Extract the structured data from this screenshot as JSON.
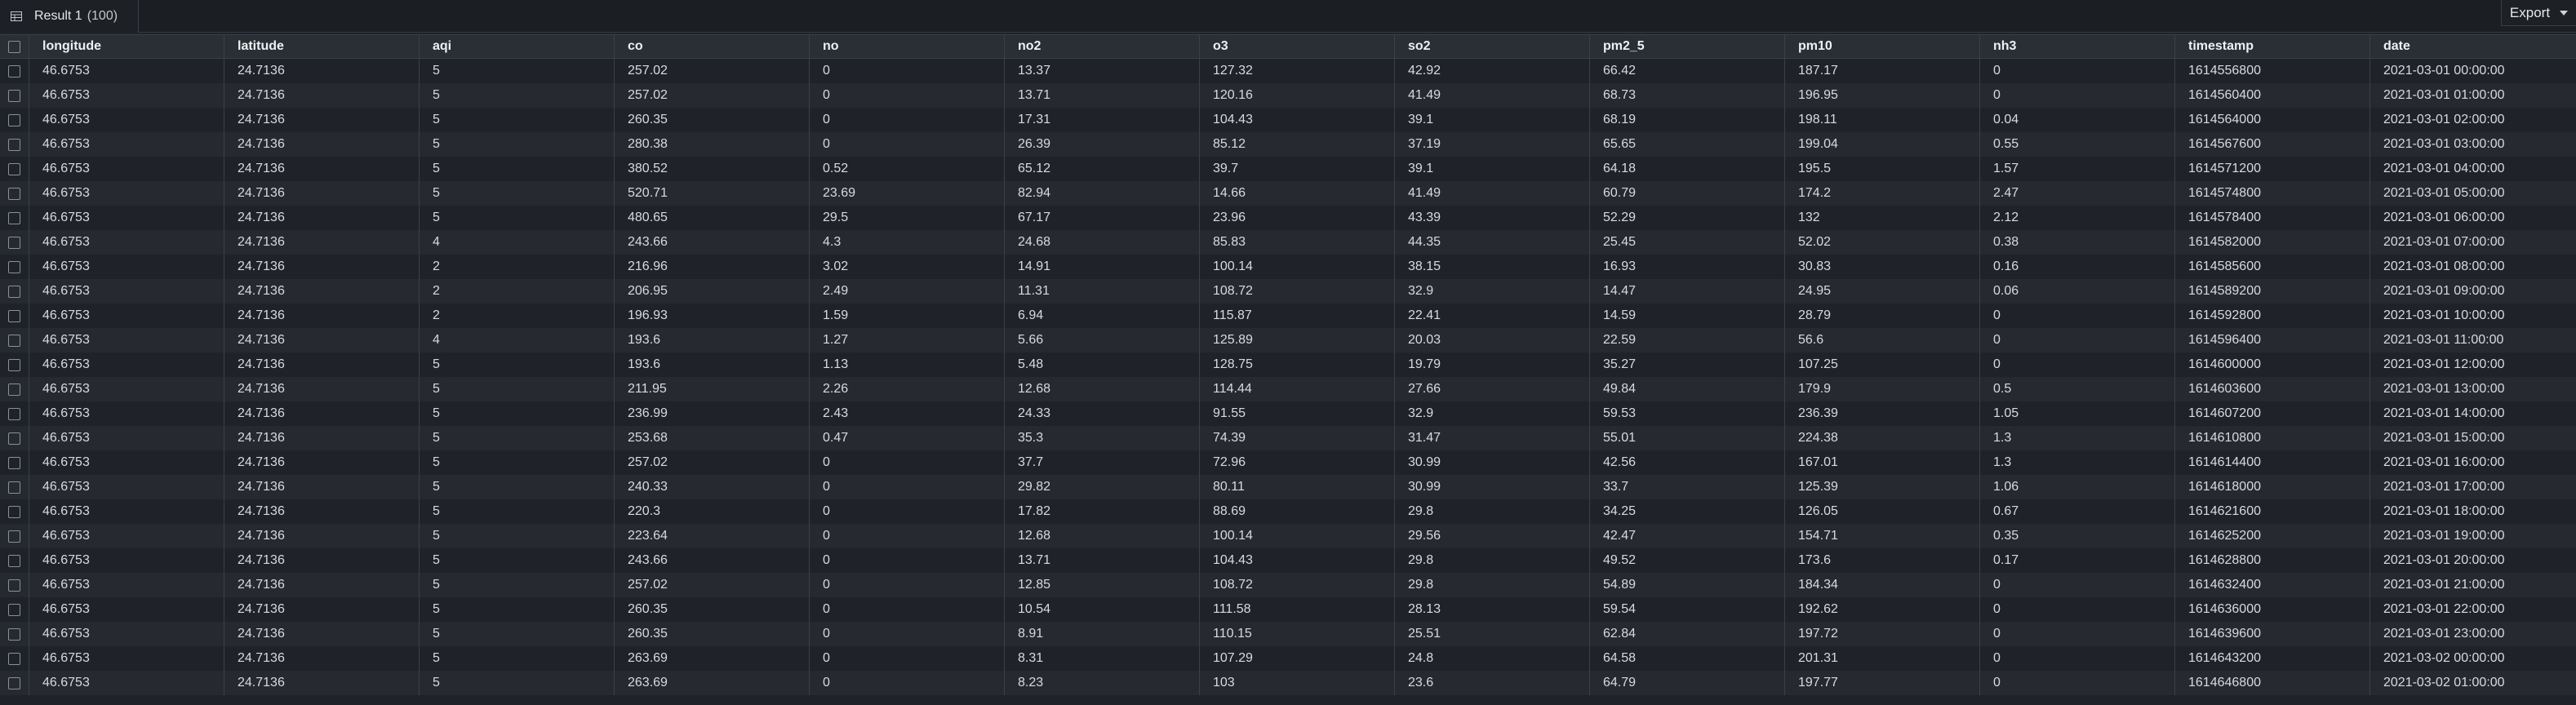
{
  "tab": {
    "label": "Result 1",
    "count": "(100)"
  },
  "toolbar": {
    "export_label": "Export"
  },
  "columns": [
    "longitude",
    "latitude",
    "aqi",
    "co",
    "no",
    "no2",
    "o3",
    "so2",
    "pm2_5",
    "pm10",
    "nh3",
    "timestamp",
    "date"
  ],
  "rows": [
    [
      "46.6753",
      "24.7136",
      "5",
      "257.02",
      "0",
      "13.37",
      "127.32",
      "42.92",
      "66.42",
      "187.17",
      "0",
      "1614556800",
      "2021-03-01 00:00:00"
    ],
    [
      "46.6753",
      "24.7136",
      "5",
      "257.02",
      "0",
      "13.71",
      "120.16",
      "41.49",
      "68.73",
      "196.95",
      "0",
      "1614560400",
      "2021-03-01 01:00:00"
    ],
    [
      "46.6753",
      "24.7136",
      "5",
      "260.35",
      "0",
      "17.31",
      "104.43",
      "39.1",
      "68.19",
      "198.11",
      "0.04",
      "1614564000",
      "2021-03-01 02:00:00"
    ],
    [
      "46.6753",
      "24.7136",
      "5",
      "280.38",
      "0",
      "26.39",
      "85.12",
      "37.19",
      "65.65",
      "199.04",
      "0.55",
      "1614567600",
      "2021-03-01 03:00:00"
    ],
    [
      "46.6753",
      "24.7136",
      "5",
      "380.52",
      "0.52",
      "65.12",
      "39.7",
      "39.1",
      "64.18",
      "195.5",
      "1.57",
      "1614571200",
      "2021-03-01 04:00:00"
    ],
    [
      "46.6753",
      "24.7136",
      "5",
      "520.71",
      "23.69",
      "82.94",
      "14.66",
      "41.49",
      "60.79",
      "174.2",
      "2.47",
      "1614574800",
      "2021-03-01 05:00:00"
    ],
    [
      "46.6753",
      "24.7136",
      "5",
      "480.65",
      "29.5",
      "67.17",
      "23.96",
      "43.39",
      "52.29",
      "132",
      "2.12",
      "1614578400",
      "2021-03-01 06:00:00"
    ],
    [
      "46.6753",
      "24.7136",
      "4",
      "243.66",
      "4.3",
      "24.68",
      "85.83",
      "44.35",
      "25.45",
      "52.02",
      "0.38",
      "1614582000",
      "2021-03-01 07:00:00"
    ],
    [
      "46.6753",
      "24.7136",
      "2",
      "216.96",
      "3.02",
      "14.91",
      "100.14",
      "38.15",
      "16.93",
      "30.83",
      "0.16",
      "1614585600",
      "2021-03-01 08:00:00"
    ],
    [
      "46.6753",
      "24.7136",
      "2",
      "206.95",
      "2.49",
      "11.31",
      "108.72",
      "32.9",
      "14.47",
      "24.95",
      "0.06",
      "1614589200",
      "2021-03-01 09:00:00"
    ],
    [
      "46.6753",
      "24.7136",
      "2",
      "196.93",
      "1.59",
      "6.94",
      "115.87",
      "22.41",
      "14.59",
      "28.79",
      "0",
      "1614592800",
      "2021-03-01 10:00:00"
    ],
    [
      "46.6753",
      "24.7136",
      "4",
      "193.6",
      "1.27",
      "5.66",
      "125.89",
      "20.03",
      "22.59",
      "56.6",
      "0",
      "1614596400",
      "2021-03-01 11:00:00"
    ],
    [
      "46.6753",
      "24.7136",
      "5",
      "193.6",
      "1.13",
      "5.48",
      "128.75",
      "19.79",
      "35.27",
      "107.25",
      "0",
      "1614600000",
      "2021-03-01 12:00:00"
    ],
    [
      "46.6753",
      "24.7136",
      "5",
      "211.95",
      "2.26",
      "12.68",
      "114.44",
      "27.66",
      "49.84",
      "179.9",
      "0.5",
      "1614603600",
      "2021-03-01 13:00:00"
    ],
    [
      "46.6753",
      "24.7136",
      "5",
      "236.99",
      "2.43",
      "24.33",
      "91.55",
      "32.9",
      "59.53",
      "236.39",
      "1.05",
      "1614607200",
      "2021-03-01 14:00:00"
    ],
    [
      "46.6753",
      "24.7136",
      "5",
      "253.68",
      "0.47",
      "35.3",
      "74.39",
      "31.47",
      "55.01",
      "224.38",
      "1.3",
      "1614610800",
      "2021-03-01 15:00:00"
    ],
    [
      "46.6753",
      "24.7136",
      "5",
      "257.02",
      "0",
      "37.7",
      "72.96",
      "30.99",
      "42.56",
      "167.01",
      "1.3",
      "1614614400",
      "2021-03-01 16:00:00"
    ],
    [
      "46.6753",
      "24.7136",
      "5",
      "240.33",
      "0",
      "29.82",
      "80.11",
      "30.99",
      "33.7",
      "125.39",
      "1.06",
      "1614618000",
      "2021-03-01 17:00:00"
    ],
    [
      "46.6753",
      "24.7136",
      "5",
      "220.3",
      "0",
      "17.82",
      "88.69",
      "29.8",
      "34.25",
      "126.05",
      "0.67",
      "1614621600",
      "2021-03-01 18:00:00"
    ],
    [
      "46.6753",
      "24.7136",
      "5",
      "223.64",
      "0",
      "12.68",
      "100.14",
      "29.56",
      "42.47",
      "154.71",
      "0.35",
      "1614625200",
      "2021-03-01 19:00:00"
    ],
    [
      "46.6753",
      "24.7136",
      "5",
      "243.66",
      "0",
      "13.71",
      "104.43",
      "29.8",
      "49.52",
      "173.6",
      "0.17",
      "1614628800",
      "2021-03-01 20:00:00"
    ],
    [
      "46.6753",
      "24.7136",
      "5",
      "257.02",
      "0",
      "12.85",
      "108.72",
      "29.8",
      "54.89",
      "184.34",
      "0",
      "1614632400",
      "2021-03-01 21:00:00"
    ],
    [
      "46.6753",
      "24.7136",
      "5",
      "260.35",
      "0",
      "10.54",
      "111.58",
      "28.13",
      "59.54",
      "192.62",
      "0",
      "1614636000",
      "2021-03-01 22:00:00"
    ],
    [
      "46.6753",
      "24.7136",
      "5",
      "260.35",
      "0",
      "8.91",
      "110.15",
      "25.51",
      "62.84",
      "197.72",
      "0",
      "1614639600",
      "2021-03-01 23:00:00"
    ],
    [
      "46.6753",
      "24.7136",
      "5",
      "263.69",
      "0",
      "8.31",
      "107.29",
      "24.8",
      "64.58",
      "201.31",
      "0",
      "1614643200",
      "2021-03-02 00:00:00"
    ],
    [
      "46.6753",
      "24.7136",
      "5",
      "263.69",
      "0",
      "8.23",
      "103",
      "23.6",
      "64.79",
      "197.77",
      "0",
      "1614646800",
      "2021-03-02 01:00:00"
    ]
  ]
}
